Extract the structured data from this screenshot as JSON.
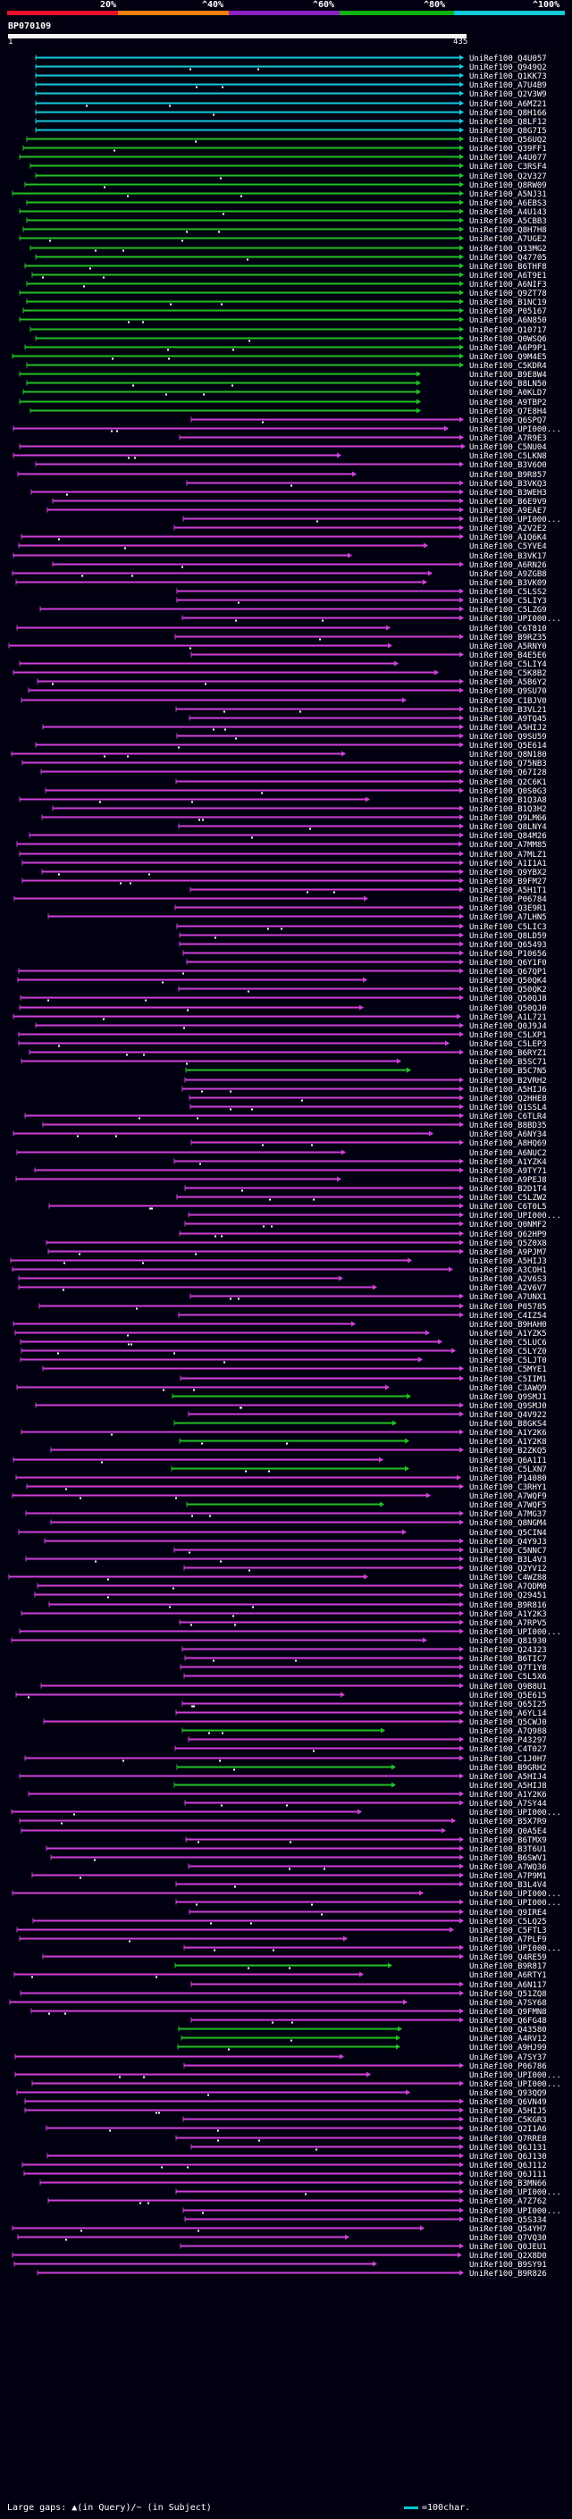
{
  "query": {
    "id": "BP070109",
    "start": "1",
    "end": "435"
  },
  "legend": {
    "labels": [
      "20%",
      "^40%",
      "^60%",
      "^80%",
      "^100%"
    ],
    "colors": [
      "#e8102a",
      "#f08010",
      "#8c20c0",
      "#10b010",
      "#10c8d8"
    ]
  },
  "colors": {
    "cyan": "#14c8dc",
    "green": "#22c022",
    "magenta": "#d040d8",
    "pink": "#e868e0",
    "dots": "#ffffff"
  },
  "footer": {
    "gaps_text": "Large gaps: ▲(in Query)/~ (in Subject)",
    "scale_text": "=100char."
  },
  "hits": [
    "UniRef100_Q4U057",
    "UniRef100_Q949Q2",
    "UniRef100_Q1KK73",
    "UniRef100_A7U4B9",
    "UniRef100_Q2V3W9",
    "UniRef100_A6MZ21",
    "UniRef100_Q8H166",
    "UniRef100_Q8LF12",
    "UniRef100_Q8G7I5",
    "UniRef100_Q56UQ2",
    "UniRef100_Q39FF1",
    "UniRef100_A4U077",
    "UniRef100_C3RSF4",
    "UniRef100_Q2V327",
    "UniRef100_Q8RW09",
    "UniRef100_A5NJ31",
    "UniRef100_A6EBS3",
    "UniRef100_A4U143",
    "UniRef100_A5CBB3",
    "UniRef100_Q8H7H8",
    "UniRef100_A7UGE2",
    "UniRef100_Q33MG2",
    "UniRef100_Q47705",
    "UniRef100_B6THF8",
    "UniRef100_A6T9E1",
    "UniRef100_A6NIF3",
    "UniRef100_Q9ZT78",
    "UniRef100_B1NC19",
    "UniRef100_P05167",
    "UniRef100_A6N850",
    "UniRef100_Q10717",
    "UniRef100_Q0WSQ6",
    "UniRef100_A6P9P1",
    "UniRef100_Q9M4E5",
    "UniRef100_C5KDR4",
    "UniRef100_B9E8W4",
    "UniRef100_B8LN50",
    "UniRef100_A0KLD7",
    "UniRef100_A9TBP2",
    "UniRef100_Q7E8H4",
    "UniRef100_Q6SPQ7",
    "UniRef100_UPI000...",
    "UniRef100_A7R9E3",
    "UniRef100_C5NU04",
    "UniRef100_C5LKN8",
    "UniRef100_B3V6O0",
    "UniRef100_B9R857",
    "UniRef100_B3VKQ3",
    "UniRef100_B3WEH3",
    "UniRef100_B6E9V9",
    "UniRef100_A9EAE7",
    "UniRef100_UPI000...",
    "UniRef100_A2V2E2",
    "UniRef100_A1Q6K4",
    "UniRef100_C5YVE4",
    "UniRef100_B3VK17",
    "UniRef100_A6RN26",
    "UniRef100_A9ZGB8",
    "UniRef100_B3VK09",
    "UniRef100_C5LSS2",
    "UniRef100_C5LIY3",
    "UniRef100_C5LZG9",
    "UniRef100_UPI000...",
    "UniRef100_C6T810",
    "UniRef100_B9RZ35",
    "UniRef100_A5RNY0",
    "UniRef100_B4E5E6",
    "UniRef100_C5LIY4",
    "UniRef100_C5K8B2",
    "UniRef100_A5B6Y2",
    "UniRef100_Q9SU70",
    "UniRef100_C1BJV0",
    "UniRef100_B3VL21",
    "UniRef100_A9TQ45",
    "UniRef100_A5HIJ2",
    "UniRef100_Q9SU59",
    "UniRef100_Q5E614",
    "UniRef100_Q8N180",
    "UniRef100_Q75NB3",
    "UniRef100_Q67I28",
    "UniRef100_Q2C6K1",
    "UniRef100_Q0S0G3",
    "UniRef100_B1Q3A8",
    "UniRef100_B1Q3H2",
    "UniRef100_Q9LM66",
    "UniRef100_Q8LNY4",
    "UniRef100_Q84M26",
    "UniRef100_A7MM85",
    "UniRef100_A7MLZ1",
    "UniRef100_A1I1A1",
    "UniRef100_Q9YBX2",
    "UniRef100_B9FM27",
    "UniRef100_A5H1T1",
    "UniRef100_P06784",
    "UniRef100_Q3E9R1",
    "UniRef100_A7LHN5",
    "UniRef100_C5LIC3",
    "UniRef100_Q8LD59",
    "UniRef100_Q65493",
    "UniRef100_P10656",
    "UniRef100_Q6Y1F0",
    "UniRef100_Q67QP1",
    "UniRef100_Q50QK4",
    "UniRef100_Q50QK2",
    "UniRef100_Q50QJ8",
    "UniRef100_Q50QJ0",
    "UniRef100_A1L721",
    "UniRef100_Q0J9J4",
    "UniRef100_C5LXP1",
    "UniRef100_C5LEP3",
    "UniRef100_B6RYZ1",
    "UniRef100_B5SC71",
    "UniRef100_B5C7N5",
    "UniRef100_B2VRH2",
    "UniRef100_A5HIJ6",
    "UniRef100_Q2HHE8",
    "UniRef100_Q1SSL4",
    "UniRef100_C6TLR4",
    "UniRef100_B8BD35",
    "UniRef100_A6NY34",
    "UniRef100_A8HQ69",
    "UniRef100_A6NUC2",
    "UniRef100_A1YZK4",
    "UniRef100_A9TY71",
    "UniRef100_A9PEJ8",
    "UniRef100_B2D1T4",
    "UniRef100_C5LZW2",
    "UniRef100_C6T0L5",
    "UniRef100_UPI000...",
    "UniRef100_Q0NMF2",
    "UniRef100_Q62HP9",
    "UniRef100_Q5Z0X8",
    "UniRef100_A9PJM7",
    "UniRef100_A5HIJ3",
    "UniRef100_A3COH1",
    "UniRef100_A2V6S3",
    "UniRef100_A2V6V7",
    "UniRef100_A7UNX1",
    "UniRef100_P05785",
    "UniRef100_C4IZ54",
    "UniRef100_B9HAH0",
    "UniRef100_A1YZK5",
    "UniRef100_C5LUC6",
    "UniRef100_C5LYZ0",
    "UniRef100_C5LJT0",
    "UniRef100_C5MYE1",
    "UniRef100_C5IIM1",
    "UniRef100_C3AWQ9",
    "UniRef100_Q9SMJ1",
    "UniRef100_Q9SMJ0",
    "UniRef100_Q4V922",
    "UniRef100_B8GKS4",
    "UniRef100_A1Y2K6",
    "UniRef100_A1Y2K8",
    "UniRef100_B2ZKQ5",
    "UniRef100_Q6A1I1",
    "UniRef100_C5LXN7",
    "UniRef100_P14080",
    "UniRef100_C3RHY1",
    "UniRef100_A7WQF9",
    "UniRef100_A7WQF5",
    "UniRef100_A7MG37",
    "UniRef100_Q8NGM4",
    "UniRef100_Q5CIN4",
    "UniRef100_Q4Y9J3",
    "UniRef100_C5NNC7",
    "UniRef100_B3L4V3",
    "UniRef100_Q2YV12",
    "UniRef100_C4WZ88",
    "UniRef100_A7QDM0",
    "UniRef100_Q29451",
    "UniRef100_B9R816",
    "UniRef100_A1Y2K3",
    "UniRef100_A7RPV5",
    "UniRef100_UPI000...",
    "UniRef100_Q81930",
    "UniRef100_Q24323",
    "UniRef100_B6TIC7",
    "UniRef100_Q7T1Y8",
    "UniRef100_C5L5X6",
    "UniRef100_Q9B8U1",
    "UniRef100_Q5E615",
    "UniRef100_Q65I25",
    "UniRef100_A6YL14",
    "UniRef100_Q5CWJ0",
    "UniRef100_A7Q988",
    "UniRef100_P43297",
    "UniRef100_C4T027",
    "UniRef100_C1J0H7",
    "UniRef100_B9GRH2",
    "UniRef100_A5HIJ4",
    "UniRef100_A5HIJ8",
    "UniRef100_A1Y2K6",
    "UniRef100_A7SY44",
    "UniRef100_UPI000...",
    "UniRef100_B5X7R9",
    "UniRef100_Q0A5E4",
    "UniRef100_B6TMX9",
    "UniRef100_B3T6U1",
    "UniRef100_B6SWV1",
    "UniRef100_A7WQ36",
    "UniRef100_A7P9M1",
    "UniRef100_B3L4V4",
    "UniRef100_UPI000...",
    "UniRef100_UPI000...",
    "UniRef100_Q9IRE4",
    "UniRef100_C5LQ25",
    "UniRef100_C5FTL3",
    "UniRef100_A7PLF9",
    "UniRef100_UPI000...",
    "UniRef100_Q4RE59",
    "UniRef100_B9R817",
    "UniRef100_A6RTY1",
    "UniRef100_A6N117",
    "UniRef100_Q51ZQ8",
    "UniRef100_A7SY68",
    "UniRef100_Q9FMN8",
    "UniRef100_Q6FG48",
    "UniRef100_Q43580",
    "UniRef100_A4RV12",
    "UniRef100_A9HJ99",
    "UniRef100_A7SY37",
    "UniRef100_P06786",
    "UniRef100_UPI000...",
    "UniRef100_UPI000...",
    "UniRef100_Q93QQ9",
    "UniRef100_Q6VN49",
    "UniRef100_A5HIJ5",
    "UniRef100_C5KGR3",
    "UniRef100_Q2I1A6",
    "UniRef100_Q7RRE8",
    "UniRef100_Q6J131",
    "UniRef100_Q6J130",
    "UniRef100_Q6J112",
    "UniRef100_Q6J111",
    "UniRef100_B3MN66",
    "UniRef100_UPI000...",
    "UniRef100_A7Z762",
    "UniRef100_UPI000...",
    "UniRef100_Q5S334",
    "UniRef100_Q54YH7",
    "UniRef100_Q7VQ30",
    "UniRef100_Q0JEU1",
    "UniRef100_Q2X8D0",
    "UniRef100_B9SY91",
    "UniRef100_B9R826"
  ]
}
